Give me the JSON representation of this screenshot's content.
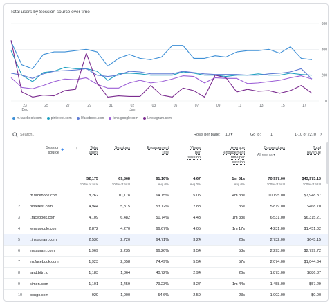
{
  "chart_title": "Total users by Session source over time",
  "chart_data": {
    "type": "line",
    "title": "Total users by Session source over time",
    "x_tick_labels": [
      "23",
      "25",
      "27",
      "29",
      "31",
      "02",
      "03",
      "05",
      "07",
      "09",
      "11",
      "13",
      "15",
      "17"
    ],
    "x_month_labels": [
      {
        "label": "Dec",
        "at": "23"
      },
      {
        "label": "Jan",
        "at": "02"
      }
    ],
    "y_ticks": [
      0,
      200,
      400,
      600
    ],
    "ylim": [
      0,
      600
    ],
    "xlim": [
      0,
      28
    ],
    "series": [
      {
        "name": "m.facebook.com",
        "color": "#3d8fd6",
        "values": [
          460,
          280,
          250,
          360,
          380,
          380,
          390,
          400,
          380,
          270,
          330,
          360,
          330,
          320,
          340,
          430,
          430,
          330,
          330,
          350,
          340,
          380,
          390,
          390,
          400,
          370,
          420,
          330,
          320
        ]
      },
      {
        "name": "pinterest.com",
        "color": "#1fa0c0",
        "values": [
          390,
          200,
          150,
          220,
          230,
          260,
          250,
          250,
          230,
          160,
          210,
          215,
          210,
          200,
          200,
          200,
          225,
          215,
          200,
          200,
          190,
          200,
          200,
          210,
          200,
          200,
          215,
          205,
          200
        ]
      },
      {
        "name": "l.facebook.com",
        "color": "#5f7dd4",
        "values": [
          215,
          200,
          175,
          210,
          230,
          235,
          240,
          250,
          200,
          190,
          200,
          230,
          225,
          210,
          210,
          210,
          230,
          220,
          210,
          205,
          205,
          205,
          200,
          200,
          210,
          215,
          225,
          250,
          170
        ]
      },
      {
        "name": "lens.google.com",
        "color": "#9c5fd6",
        "values": [
          180,
          105,
          95,
          120,
          150,
          170,
          165,
          180,
          130,
          100,
          100,
          140,
          160,
          140,
          150,
          170,
          195,
          190,
          140,
          180,
          175,
          175,
          135,
          140,
          150,
          160,
          180,
          195,
          170
        ]
      },
      {
        "name": "l.instagram.com",
        "color": "#7b2b8f",
        "values": [
          470,
          70,
          30,
          45,
          40,
          80,
          90,
          370,
          140,
          30,
          40,
          35,
          35,
          120,
          45,
          30,
          100,
          80,
          30,
          200,
          180,
          70,
          90,
          75,
          80,
          60,
          80,
          120,
          60
        ]
      }
    ]
  },
  "toolbar": {
    "search_placeholder": "Search...",
    "rows_per_page_label": "Rows per page:",
    "rows_per_page_value": "10",
    "goto_label": "Go to:",
    "goto_value": "1",
    "range_text": "1-10 of 2270",
    "prev_glyph": "‹",
    "next_glyph": "›"
  },
  "table": {
    "headers": {
      "source": [
        "Session",
        "source"
      ],
      "plus": "+",
      "sort_arrow": "↓",
      "users": [
        "Total",
        "users"
      ],
      "sessions": [
        "Sessions"
      ],
      "engagement": [
        "Engagement",
        "rate"
      ],
      "views": [
        "Views",
        "per",
        "session"
      ],
      "avg_time": [
        "Average",
        "engagement",
        "time per",
        "session"
      ],
      "conversions": [
        "Conversions"
      ],
      "conversions_select": "All events ▾",
      "revenue": [
        "Total",
        "revenue"
      ]
    },
    "totals": {
      "users": "52,175",
      "users_sub": "100% of total",
      "sessions": "69,868",
      "sessions_sub": "100% of total",
      "engagement": "61.16%",
      "engagement_sub": "Avg 0%",
      "views": "4.67",
      "views_sub": "Avg 0%",
      "avg_time": "1m 51s",
      "avg_time_sub": "Avg 0%",
      "conversions": "70,997.00",
      "conversions_sub": "100% of total",
      "revenue": "$43,973.13",
      "revenue_sub": "100% of total"
    },
    "rows": [
      {
        "n": "1",
        "source": "m.facebook.com",
        "users": "8,262",
        "sessions": "10,178",
        "engagement": "64.15%",
        "views": "5.05",
        "avg_time": "4m 33s",
        "conversions": "10,195.00",
        "revenue": "$7,948.87"
      },
      {
        "n": "2",
        "source": "pinterest.com",
        "users": "4,944",
        "sessions": "5,815",
        "engagement": "53.12%",
        "views": "2.88",
        "avg_time": "35s",
        "conversions": "5,819.00",
        "revenue": "$468.70"
      },
      {
        "n": "3",
        "source": "l.facebook.com",
        "users": "4,109",
        "sessions": "6,482",
        "engagement": "51.74%",
        "views": "4.43",
        "avg_time": "1m 38s",
        "conversions": "6,531.00",
        "revenue": "$6,315.21"
      },
      {
        "n": "4",
        "source": "lens.google.com",
        "users": "2,872",
        "sessions": "4,270",
        "engagement": "66.67%",
        "views": "4.05",
        "avg_time": "1m 17s",
        "conversions": "4,231.00",
        "revenue": "$1,451.02"
      },
      {
        "n": "5",
        "source": "l.instagram.com",
        "users": "2,530",
        "sessions": "2,720",
        "engagement": "64.71%",
        "views": "3.24",
        "avg_time": "26s",
        "conversions": "2,732.00",
        "revenue": "$645.15"
      },
      {
        "n": "6",
        "source": "instagram.com",
        "users": "1,969",
        "sessions": "2,235",
        "engagement": "66.26%",
        "views": "3.54",
        "avg_time": "53s",
        "conversions": "2,293.00",
        "revenue": "$2,799.72"
      },
      {
        "n": "7",
        "source": "lm.facebook.com",
        "users": "1,923",
        "sessions": "2,058",
        "engagement": "74.49%",
        "views": "5.54",
        "avg_time": "57s",
        "conversions": "2,074.00",
        "revenue": "$1,044.34"
      },
      {
        "n": "8",
        "source": "land.bttn.io",
        "users": "1,183",
        "sessions": "1,864",
        "engagement": "40.72%",
        "views": "2.94",
        "avg_time": "26s",
        "conversions": "1,873.00",
        "revenue": "$886.87"
      },
      {
        "n": "9",
        "source": "simon.com",
        "users": "1,101",
        "sessions": "1,459",
        "engagement": "79.23%",
        "views": "8.27",
        "avg_time": "1m 44s",
        "conversions": "1,458.00",
        "revenue": "$57.29"
      },
      {
        "n": "10",
        "source": "bongo.com",
        "users": "920",
        "sessions": "1,000",
        "engagement": "54.6%",
        "views": "2.59",
        "avg_time": "23s",
        "conversions": "1,002.00",
        "revenue": "$0.00"
      }
    ]
  }
}
